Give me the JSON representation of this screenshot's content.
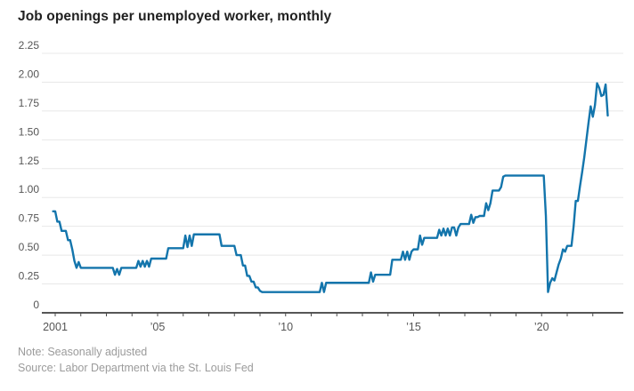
{
  "title": "Job openings per unemployed worker, monthly",
  "note": "Note: Seasonally adjusted",
  "source": "Source: Labor Department via the St. Louis Fed",
  "chart_data": {
    "type": "line",
    "title": "Job openings per unemployed worker, monthly",
    "xlabel": "",
    "ylabel": "",
    "grid": true,
    "legend_position": "none",
    "line_color": "#1375ac",
    "grid_color": "#e8e8e8",
    "axis_color": "#1f1f1f",
    "tick_text_color": "#555555",
    "ylim": [
      0,
      2.25
    ],
    "xlim": [
      2000.55,
      2022.95
    ],
    "yticks": [
      {
        "value": 0,
        "label": "0"
      },
      {
        "value": 0.25,
        "label": "0.25"
      },
      {
        "value": 0.5,
        "label": "0.50"
      },
      {
        "value": 0.75,
        "label": "0.75"
      },
      {
        "value": 1.0,
        "label": "1.00"
      },
      {
        "value": 1.25,
        "label": "1.25"
      },
      {
        "value": 1.5,
        "label": "1.50"
      },
      {
        "value": 1.75,
        "label": "1.75"
      },
      {
        "value": 2.0,
        "label": "2.00"
      },
      {
        "value": 2.25,
        "label": "2.25"
      }
    ],
    "xticks_labeled": [
      {
        "value": 2001,
        "label": "2001"
      },
      {
        "value": 2005,
        "label": "’05"
      },
      {
        "value": 2010,
        "label": "’10"
      },
      {
        "value": 2015,
        "label": "’15"
      },
      {
        "value": 2020,
        "label": "’20"
      }
    ],
    "minor_tick_years_start": 2001,
    "minor_tick_years_end": 2022,
    "series": [
      {
        "name": "Job openings per unemployed worker",
        "frequency": "monthly",
        "start_year": 2000,
        "start_month": 12,
        "values": [
          0.88,
          0.88,
          0.79,
          0.79,
          0.71,
          0.71,
          0.71,
          0.63,
          0.63,
          0.55,
          0.45,
          0.39,
          0.44,
          0.39,
          0.39,
          0.39,
          0.39,
          0.39,
          0.39,
          0.39,
          0.39,
          0.39,
          0.39,
          0.39,
          0.39,
          0.39,
          0.39,
          0.39,
          0.39,
          0.33,
          0.38,
          0.33,
          0.39,
          0.39,
          0.39,
          0.39,
          0.39,
          0.39,
          0.39,
          0.39,
          0.45,
          0.4,
          0.45,
          0.4,
          0.45,
          0.4,
          0.47,
          0.47,
          0.47,
          0.47,
          0.47,
          0.47,
          0.47,
          0.47,
          0.56,
          0.56,
          0.56,
          0.56,
          0.56,
          0.56,
          0.56,
          0.56,
          0.67,
          0.57,
          0.67,
          0.58,
          0.68,
          0.68,
          0.68,
          0.68,
          0.68,
          0.68,
          0.68,
          0.68,
          0.68,
          0.68,
          0.68,
          0.68,
          0.68,
          0.58,
          0.58,
          0.58,
          0.58,
          0.58,
          0.58,
          0.58,
          0.5,
          0.5,
          0.5,
          0.41,
          0.41,
          0.32,
          0.32,
          0.27,
          0.27,
          0.22,
          0.22,
          0.19,
          0.18,
          0.18,
          0.18,
          0.18,
          0.18,
          0.18,
          0.18,
          0.18,
          0.18,
          0.18,
          0.18,
          0.18,
          0.18,
          0.18,
          0.18,
          0.18,
          0.18,
          0.18,
          0.18,
          0.18,
          0.18,
          0.18,
          0.18,
          0.18,
          0.18,
          0.18,
          0.18,
          0.18,
          0.26,
          0.18,
          0.26,
          0.26,
          0.26,
          0.26,
          0.26,
          0.26,
          0.26,
          0.26,
          0.26,
          0.26,
          0.26,
          0.26,
          0.26,
          0.26,
          0.26,
          0.26,
          0.26,
          0.26,
          0.26,
          0.26,
          0.26,
          0.35,
          0.27,
          0.33,
          0.33,
          0.33,
          0.33,
          0.33,
          0.33,
          0.33,
          0.33,
          0.46,
          0.46,
          0.46,
          0.46,
          0.46,
          0.53,
          0.46,
          0.53,
          0.46,
          0.53,
          0.55,
          0.55,
          0.55,
          0.67,
          0.59,
          0.65,
          0.65,
          0.65,
          0.65,
          0.65,
          0.65,
          0.65,
          0.72,
          0.67,
          0.73,
          0.67,
          0.73,
          0.67,
          0.74,
          0.74,
          0.67,
          0.74,
          0.77,
          0.77,
          0.77,
          0.77,
          0.77,
          0.85,
          0.78,
          0.83,
          0.83,
          0.84,
          0.84,
          0.84,
          0.95,
          0.89,
          0.95,
          1.06,
          1.06,
          1.06,
          1.06,
          1.09,
          1.18,
          1.19,
          1.19,
          1.19,
          1.19,
          1.19,
          1.19,
          1.19,
          1.19,
          1.19,
          1.19,
          1.19,
          1.19,
          1.19,
          1.19,
          1.19,
          1.19,
          1.19,
          1.19,
          1.19,
          0.84,
          0.18,
          0.26,
          0.3,
          0.28,
          0.35,
          0.42,
          0.47,
          0.55,
          0.53,
          0.58,
          0.58,
          0.58,
          0.75,
          0.97,
          0.97,
          1.1,
          1.22,
          1.35,
          1.5,
          1.65,
          1.79,
          1.7,
          1.8,
          1.99,
          1.95,
          1.88,
          1.89,
          1.98,
          1.71
        ]
      }
    ]
  }
}
